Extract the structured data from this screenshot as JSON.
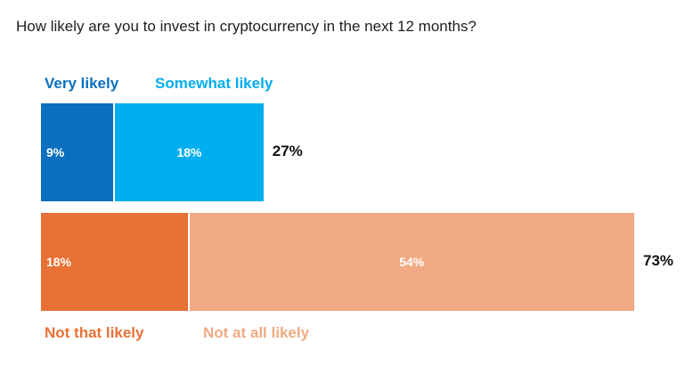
{
  "title": "How likely are you to invest in cryptocurrency in the next 12 months?",
  "chart_data": {
    "type": "bar",
    "title": "How likely are you to invest in cryptocurrency in the next 12 months?",
    "orientation": "horizontal-stacked",
    "unit": "%",
    "bars": [
      {
        "total_label": "27%",
        "total": 27,
        "segments": [
          {
            "name": "Very likely",
            "value": 9,
            "label": "9%",
            "color": "#0a6fbf",
            "label_align": "left"
          },
          {
            "name": "Somewhat likely",
            "value": 18,
            "label": "18%",
            "color": "#00adef",
            "label_align": "center"
          }
        ]
      },
      {
        "total_label": "73%",
        "total": 73,
        "segments": [
          {
            "name": "Not that likely",
            "value": 18,
            "label": "18%",
            "color": "#e87135",
            "label_align": "left"
          },
          {
            "name": "Not at all likely",
            "value": 54,
            "label": "54%",
            "color": "#f1aa83",
            "label_align": "center"
          }
        ]
      }
    ],
    "legend": [
      {
        "name": "Very likely",
        "color": "#0a6fbf",
        "placement": "above-bar-1"
      },
      {
        "name": "Somewhat likely",
        "color": "#00adef",
        "placement": "above-bar-1"
      },
      {
        "name": "Not that likely",
        "color": "#e87135",
        "placement": "below-bar-2"
      },
      {
        "name": "Not at all likely",
        "color": "#f1aa83",
        "placement": "below-bar-2"
      }
    ]
  }
}
